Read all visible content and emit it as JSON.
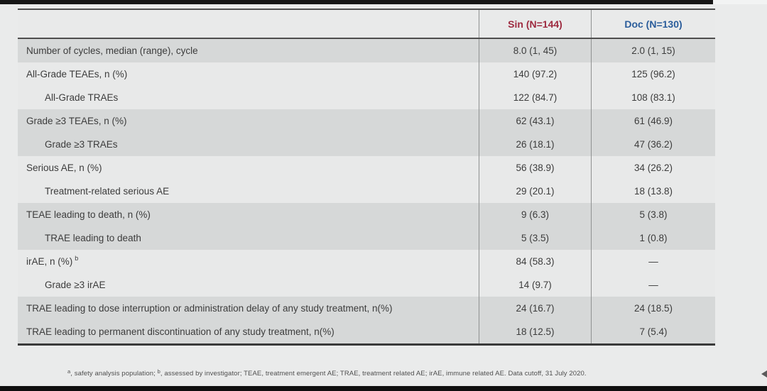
{
  "table": {
    "columns": [
      {
        "key": "label",
        "label": ""
      },
      {
        "key": "sin",
        "label": "Sin (N=144)",
        "color": "#9e2b40"
      },
      {
        "key": "doc",
        "label": "Doc (N=130)",
        "color": "#2b5d9b"
      }
    ],
    "rows": [
      {
        "label": "Number of cycles, median (range), cycle",
        "indent": false,
        "shaded": true,
        "sin": "8.0 (1, 45)",
        "doc": "2.0 (1, 15)"
      },
      {
        "label": "All-Grade TEAEs, n (%)",
        "indent": false,
        "shaded": false,
        "sin": "140 (97.2)",
        "doc": "125 (96.2)"
      },
      {
        "label": "All-Grade TRAEs",
        "indent": true,
        "shaded": false,
        "sin": "122 (84.7)",
        "doc": "108 (83.1)"
      },
      {
        "label": "Grade ≥3 TEAEs, n (%)",
        "indent": false,
        "shaded": true,
        "sin": "62 (43.1)",
        "doc": "61 (46.9)"
      },
      {
        "label": "Grade ≥3 TRAEs",
        "indent": true,
        "shaded": true,
        "sin": "26 (18.1)",
        "doc": "47 (36.2)"
      },
      {
        "label": "Serious AE, n (%)",
        "indent": false,
        "shaded": false,
        "sin": "56 (38.9)",
        "doc": "34 (26.2)"
      },
      {
        "label": "Treatment-related serious AE",
        "indent": true,
        "shaded": false,
        "sin": "29 (20.1)",
        "doc": "18 (13.8)"
      },
      {
        "label": "TEAE leading to death, n (%)",
        "indent": false,
        "shaded": true,
        "sin": "9 (6.3)",
        "doc": "5 (3.8)"
      },
      {
        "label": "TRAE leading to death",
        "indent": true,
        "shaded": true,
        "sin": "5 (3.5)",
        "doc": "1 (0.8)"
      },
      {
        "label": "irAE, n (%)",
        "sup": "b",
        "indent": false,
        "shaded": false,
        "sin": "84 (58.3)",
        "doc": "—"
      },
      {
        "label": "Grade ≥3 irAE",
        "indent": true,
        "shaded": false,
        "sin": "14 (9.7)",
        "doc": "—"
      },
      {
        "label": "TRAE leading to dose interruption or administration delay of any study treatment, n(%)",
        "indent": false,
        "shaded": true,
        "sin": "24 (16.7)",
        "doc": "24 (18.5)"
      },
      {
        "label": "TRAE leading to permanent discontinuation of any study treatment, n(%)",
        "indent": false,
        "shaded": true,
        "sin": "18 (12.5)",
        "doc": "7 (5.4)"
      }
    ]
  },
  "footnote": {
    "sup_a": "a",
    "part_a": ", safety analysis population; ",
    "sup_b": "b",
    "part_b": ", assessed by investigator; TEAE, treatment emergent AE; TRAE, treatment related AE; irAE, immune related AE. Data cutoff, 31 July 2020."
  }
}
